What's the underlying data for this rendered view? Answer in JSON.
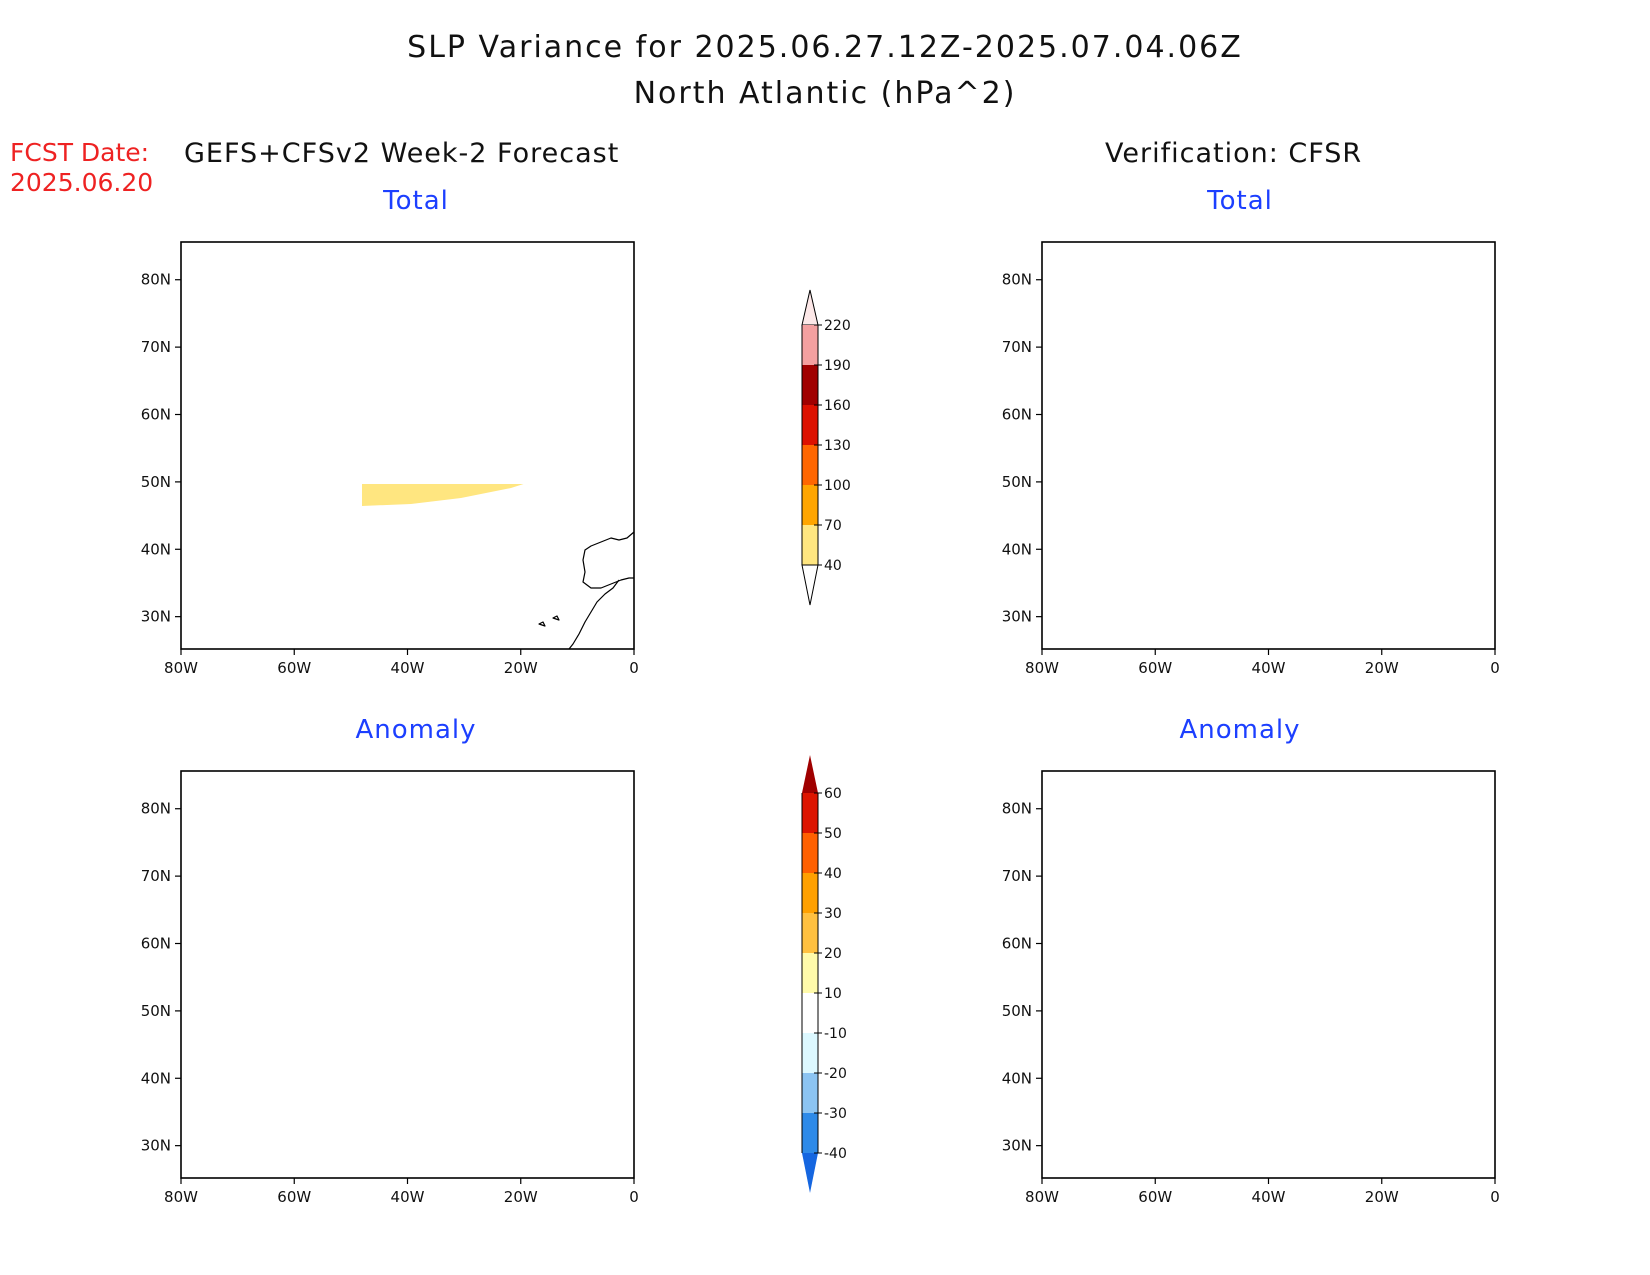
{
  "title": {
    "line1": "SLP Variance for 2025.06.27.12Z-2025.07.04.06Z",
    "line2": "North Atlantic (hPa^2)"
  },
  "forecast_date": {
    "label": "FCST Date:",
    "value": "2025.06.20"
  },
  "columns": {
    "left_title": "GEFS+CFSv2 Week-2 Forecast",
    "right_title": "Verification: CFSR"
  },
  "panels": {
    "forecast_total": "Total",
    "verification_total": "Total",
    "forecast_anomaly": "Anomaly",
    "verification_anomaly": "Anomaly"
  },
  "map_axes": {
    "lon_labels": [
      "80W",
      "60W",
      "40W",
      "20W",
      "0"
    ],
    "lat_labels": [
      "80N",
      "70N",
      "60N",
      "50N",
      "40N",
      "30N"
    ]
  },
  "colorbar_total": {
    "levels": [
      "40",
      "70",
      "100",
      "130",
      "160",
      "190",
      "220"
    ],
    "colors": [
      "#ffe680",
      "#ffa500",
      "#ff6600",
      "#dd1100",
      "#a00000",
      "#f4a0a0",
      "#fde8e8"
    ]
  },
  "colorbar_anomaly": {
    "levels": [
      "-40",
      "-30",
      "-20",
      "-10",
      "10",
      "20",
      "30",
      "40",
      "50",
      "60"
    ],
    "colors": [
      "#1566e0",
      "#2e8ae8",
      "#8cc4f2",
      "#dcf8ff",
      "#ffffff",
      "#fffaaa",
      "#ffc040",
      "#ffa000",
      "#ff6000",
      "#dd1500",
      "#a00000"
    ]
  },
  "colors": {
    "fill_40_70": "#ffe680",
    "fill_70_100": "#ffa500",
    "fill_100_130": "#ff6600",
    "fill_130_160": "#dd1100",
    "anom_10_20": "#fffaaa",
    "anom_20_30": "#ffc040",
    "anom_30_40": "#ffa000",
    "anom_40_50": "#ff6000",
    "anom_50_60": "#dd1500",
    "anom_gt60": "#a00000",
    "anom_neg10": "#dcf8ff",
    "anom_neg20": "#8cc4f2",
    "title_blue": "#1c3fff",
    "fcst_red": "#ee2222"
  }
}
